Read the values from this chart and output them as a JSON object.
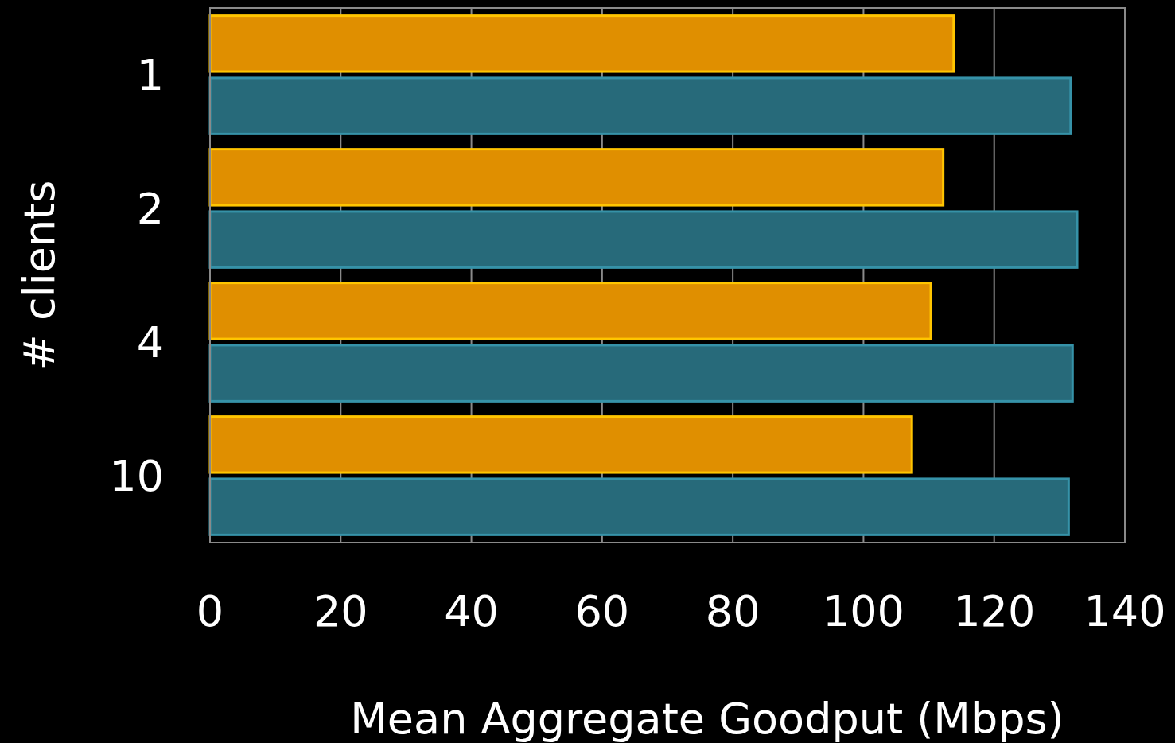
{
  "chart_data": {
    "type": "bar",
    "orientation": "horizontal",
    "xlabel": "Mean Aggregate Goodput (Mbps)",
    "ylabel": "# clients",
    "categories": [
      "1",
      "2",
      "4",
      "10"
    ],
    "series": [
      {
        "color": "#e08f00",
        "values": [
          113.8,
          112.2,
          110.3,
          107.4
        ]
      },
      {
        "color": "#276a7a",
        "values": [
          131.7,
          132.7,
          132.0,
          131.4
        ]
      }
    ],
    "xlim": [
      0,
      140
    ],
    "xticks": [
      0,
      20,
      40,
      60,
      80,
      100,
      120,
      140
    ],
    "grid": "x"
  }
}
